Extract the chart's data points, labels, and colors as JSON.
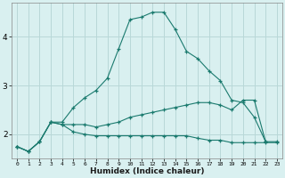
{
  "xlabel": "Humidex (Indice chaleur)",
  "x": [
    0,
    1,
    2,
    3,
    4,
    5,
    6,
    7,
    8,
    9,
    10,
    11,
    12,
    13,
    14,
    15,
    16,
    17,
    18,
    19,
    20,
    21,
    22,
    23
  ],
  "line1": [
    1.75,
    1.65,
    1.85,
    2.25,
    2.25,
    2.55,
    2.75,
    2.9,
    3.15,
    3.75,
    4.35,
    4.4,
    4.5,
    4.5,
    4.15,
    3.7,
    3.55,
    3.3,
    3.1,
    2.7,
    2.65,
    2.35,
    1.85,
    null
  ],
  "line2": [
    1.75,
    1.65,
    1.85,
    2.25,
    2.2,
    2.2,
    2.2,
    2.15,
    2.2,
    2.25,
    2.35,
    2.4,
    2.45,
    2.5,
    2.55,
    2.6,
    2.65,
    2.65,
    2.6,
    2.5,
    2.7,
    2.7,
    1.85,
    1.85
  ],
  "line3": [
    1.75,
    1.65,
    1.85,
    2.25,
    2.2,
    2.05,
    2.0,
    1.97,
    1.97,
    1.97,
    1.97,
    1.97,
    1.97,
    1.97,
    1.97,
    1.97,
    1.92,
    1.88,
    1.88,
    1.83,
    1.83,
    1.83,
    1.83,
    1.83
  ],
  "line_color": "#1a7a6e",
  "bg_color": "#d9f0f0",
  "grid_color": "#b8d8d8",
  "ylim": [
    1.5,
    4.7
  ],
  "yticks": [
    2,
    3,
    4
  ],
  "figsize": [
    3.2,
    2.0
  ],
  "dpi": 100
}
